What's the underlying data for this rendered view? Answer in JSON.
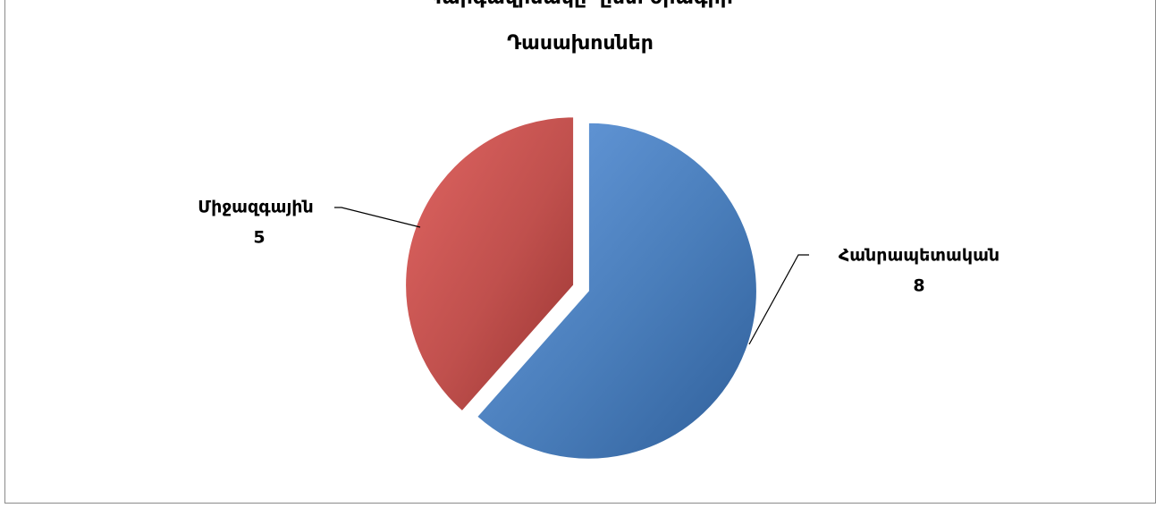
{
  "header": {
    "clipped_heading": "Կարգավիճակը՝ ըստ ծրագրի"
  },
  "chart_data": {
    "type": "pie",
    "title": "Դասախոսներ",
    "categories": [
      "Հանրապետական",
      "Միջազգային"
    ],
    "values": [
      8,
      5
    ],
    "colors": [
      "#4a7ebb",
      "#c0504d"
    ],
    "exploded": true,
    "legend": "none",
    "data_labels": "category and value, outside with leader lines"
  }
}
